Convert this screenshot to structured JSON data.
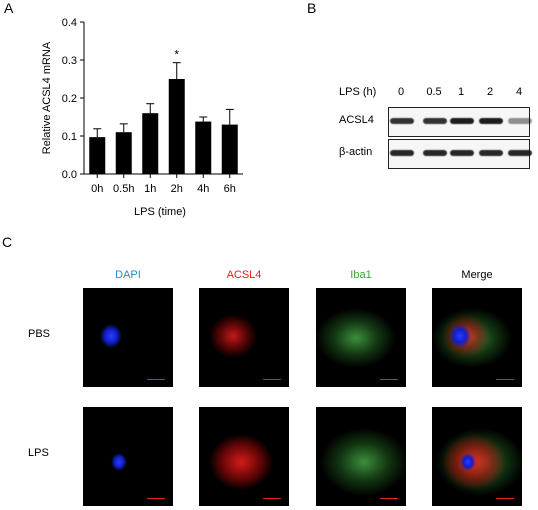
{
  "panel_labels": {
    "a": "A",
    "b": "B",
    "c": "C"
  },
  "chart_data": {
    "type": "bar",
    "categories": [
      "0h",
      "0.5h",
      "1h",
      "2h",
      "4h",
      "6h"
    ],
    "values": [
      0.097,
      0.11,
      0.16,
      0.25,
      0.138,
      0.13
    ],
    "errors": [
      0.022,
      0.022,
      0.025,
      0.043,
      0.012,
      0.04
    ],
    "significance": [
      "",
      "",
      "",
      "*",
      "",
      ""
    ],
    "xlabel": "LPS (time)",
    "ylabel": "Relative ACSL4 mRNA",
    "ylim": [
      0,
      0.4
    ],
    "yticks": [
      "0.0",
      "0.1",
      "0.2",
      "0.3",
      "0.4"
    ],
    "bar_color": "#000000"
  },
  "western_blot": {
    "treatment_label": "LPS (h)",
    "lanes": [
      "0",
      "0.5",
      "1",
      "2",
      "4"
    ],
    "rows": [
      {
        "name": "ACSL4",
        "intensity": [
          0.85,
          0.85,
          0.95,
          0.95,
          0.45
        ]
      },
      {
        "name": "β-actin",
        "intensity": [
          0.9,
          0.9,
          0.9,
          0.9,
          0.9
        ]
      }
    ]
  },
  "microscopy": {
    "channels": [
      {
        "name": "DAPI",
        "color": "#1a8fd0"
      },
      {
        "name": "ACSL4",
        "color": "#e02020"
      },
      {
        "name": "Iba1",
        "color": "#3aa53a"
      },
      {
        "name": "Merge",
        "color": "#000000"
      }
    ],
    "conditions": [
      "PBS",
      "LPS"
    ]
  }
}
